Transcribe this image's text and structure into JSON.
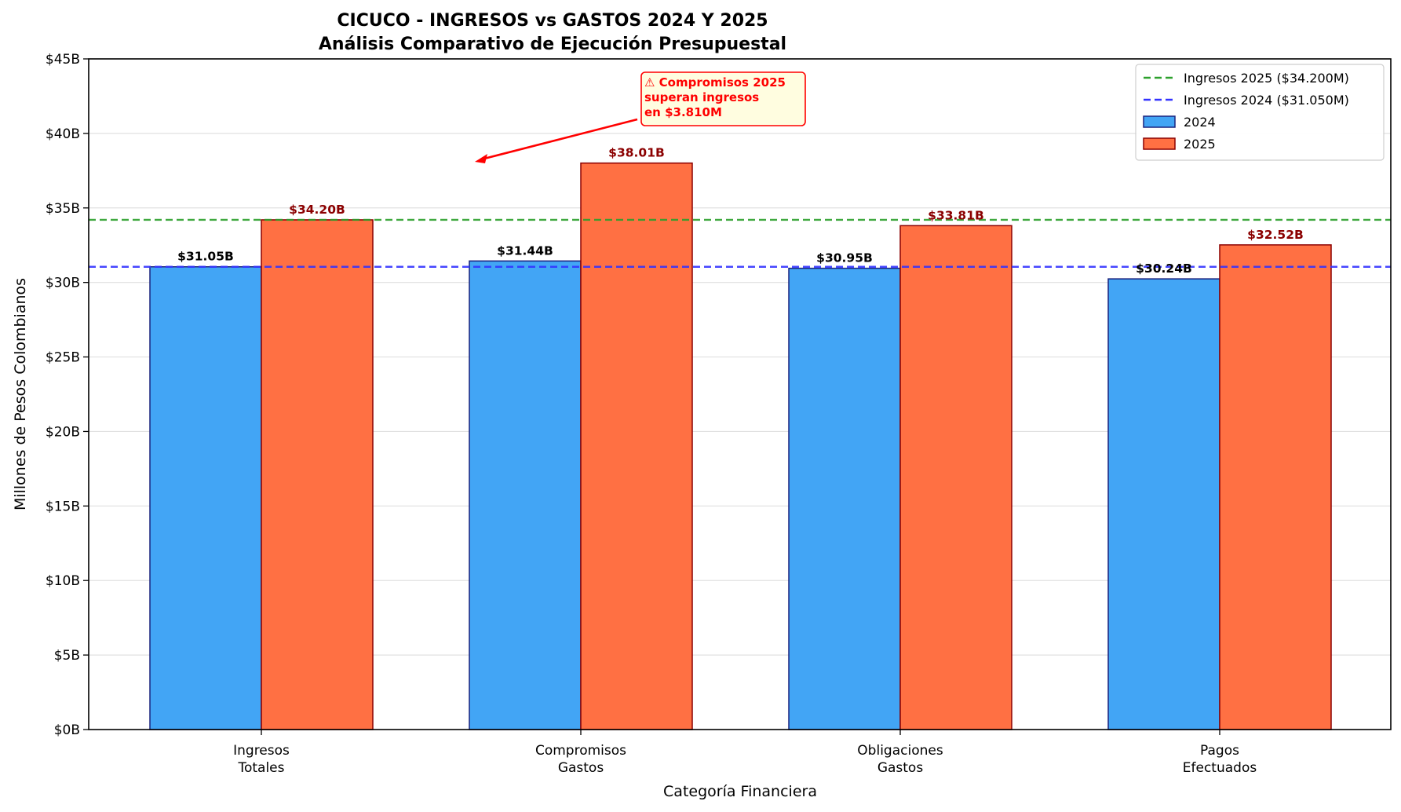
{
  "chart_data": {
    "type": "bar",
    "title": "CICUCO - INGRESOS vs GASTOS 2024 Y 2025",
    "subtitle": "Análisis Comparativo de Ejecución Presupuestal",
    "xlabel": "Categoría Financiera",
    "ylabel": "Millones de Pesos Colombianos",
    "ylim": [
      0,
      45
    ],
    "yticks": [
      0,
      5,
      10,
      15,
      20,
      25,
      30,
      35,
      40,
      45
    ],
    "ytick_labels": [
      "$0B",
      "$5B",
      "$10B",
      "$15B",
      "$20B",
      "$25B",
      "$30B",
      "$35B",
      "$40B",
      "$45B"
    ],
    "grid": "horizontal",
    "categories": [
      [
        "Ingresos",
        "Totales"
      ],
      [
        "Compromisos",
        "Gastos"
      ],
      [
        "Obligaciones",
        "Gastos"
      ],
      [
        "Pagos",
        "Efectuados"
      ]
    ],
    "series": [
      {
        "name": "2024",
        "color": "#42a5f5",
        "edge_color": "#1a237e",
        "label_color": "#000000",
        "values": [
          31.05,
          31.44,
          30.95,
          30.24
        ],
        "labels": [
          "$31.05B",
          "$31.44B",
          "$30.95B",
          "$30.24B"
        ]
      },
      {
        "name": "2025",
        "color": "#ff7043",
        "edge_color": "#8b0000",
        "label_color": "#8b0000",
        "values": [
          34.2,
          38.01,
          33.81,
          32.52
        ],
        "labels": [
          "$34.20B",
          "$38.01B",
          "$33.81B",
          "$32.52B"
        ]
      }
    ],
    "reference_lines": [
      {
        "name": "Ingresos 2025 ($34.200M)",
        "value": 34.2,
        "color": "#2ca02c"
      },
      {
        "name": "Ingresos 2024 ($31.050M)",
        "value": 31.05,
        "color": "#3333ff"
      }
    ],
    "legend_position": "top-right",
    "annotation": {
      "lines": [
        "⚠ Compromisos 2025",
        "superan ingresos",
        "en $3.810M"
      ],
      "color": "#ff0000",
      "box_fill": "#fffde0"
    }
  }
}
